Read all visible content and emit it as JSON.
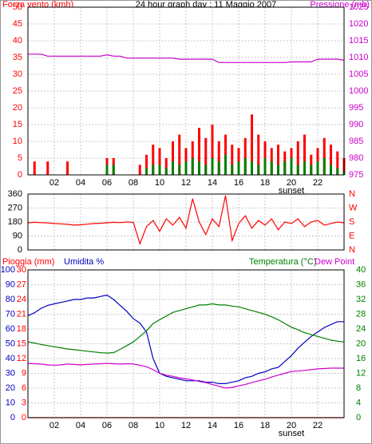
{
  "chart_data": [
    {
      "type": "bar",
      "title": "24 hour graph day : 11 Maggio 2007",
      "x": [
        0,
        0.5,
        1,
        1.5,
        2,
        2.5,
        3,
        3.5,
        4,
        4.5,
        5,
        5.5,
        6,
        6.5,
        7,
        7.5,
        8,
        8.5,
        9,
        9.5,
        10,
        10.5,
        11,
        11.5,
        12,
        12.5,
        13,
        13.5,
        14,
        14.5,
        15,
        15.5,
        16,
        16.5,
        17,
        17.5,
        18,
        18.5,
        19,
        19.5,
        20,
        20.5,
        21,
        21.5,
        22,
        22.5,
        23,
        23.5,
        24
      ],
      "xlim": [
        0,
        24
      ],
      "xticks": [
        {
          "value": 2,
          "label": "02"
        },
        {
          "value": 4,
          "label": "04"
        },
        {
          "value": 6,
          "label": "06"
        },
        {
          "value": 8,
          "label": "08"
        },
        10,
        12,
        14,
        16,
        18,
        20,
        22
      ],
      "show_xtick_labels": true,
      "ylim": [
        0,
        50
      ],
      "yticks": [
        0,
        5,
        10,
        15,
        20,
        25,
        30,
        35,
        40,
        45,
        50
      ],
      "ycolor": "#ff0000",
      "y2lim": [
        975,
        1025
      ],
      "y2ticks": [
        975,
        980,
        985,
        990,
        995,
        1000,
        1005,
        1010,
        1015,
        1020,
        1025
      ],
      "y2color": "#cc00cc",
      "grid": true,
      "annotations": [
        {
          "x": 20,
          "text": "sunset"
        }
      ],
      "series": [
        {
          "name": "Forza vento (kmh)",
          "type": "bar",
          "color": "#ff0000",
          "values": [
            0,
            4,
            0,
            4,
            0,
            0,
            4,
            0,
            0,
            0,
            0,
            0,
            5,
            5,
            0,
            0,
            0,
            3,
            6,
            9,
            8,
            5,
            10,
            12,
            8,
            10,
            14,
            11,
            15,
            10,
            12,
            9,
            8,
            11,
            18,
            12,
            10,
            8,
            9,
            7,
            8,
            10,
            12,
            6,
            8,
            11,
            9,
            7,
            5
          ]
        },
        {
          "type": "bar",
          "color": "#008000",
          "values": [
            0,
            0,
            0,
            0,
            0,
            0,
            0,
            0,
            0,
            0,
            0,
            0,
            3,
            3,
            0,
            0,
            0,
            0,
            2,
            3,
            3,
            2,
            4,
            3,
            4,
            5,
            4,
            3,
            5,
            4,
            6,
            3,
            4,
            5,
            4,
            3,
            5,
            4,
            3,
            4,
            5,
            3,
            4,
            3,
            4,
            5,
            3,
            2,
            1
          ]
        },
        {
          "name": "Pressione (mb)",
          "type": "line",
          "axis": "y2",
          "color": "#cc00cc",
          "values": [
            1011,
            1011,
            1011,
            1010.4,
            1010.4,
            1010.4,
            1010.4,
            1010.4,
            1010.4,
            1010.4,
            1010.4,
            1010.4,
            1010.8,
            1010.4,
            1010.4,
            1009.8,
            1009.8,
            1009.8,
            1009.8,
            1009.8,
            1009.8,
            1009.8,
            1009.8,
            1009.5,
            1009.5,
            1009.5,
            1009.5,
            1009.5,
            1009.5,
            1008.5,
            1008.5,
            1008.5,
            1008.5,
            1008.5,
            1008.5,
            1008.5,
            1008.5,
            1008.5,
            1008.5,
            1008.5,
            1008.7,
            1008.7,
            1008.7,
            1008.7,
            1009.5,
            1009.5,
            1009.5,
            1009.5,
            1009.2
          ]
        }
      ]
    },
    {
      "type": "line",
      "x": [
        0,
        0.5,
        1,
        1.5,
        2,
        2.5,
        3,
        3.5,
        4,
        4.5,
        5,
        5.5,
        6,
        6.5,
        7,
        7.5,
        8,
        8.5,
        9,
        9.5,
        10,
        10.5,
        11,
        11.5,
        12,
        12.5,
        13,
        13.5,
        14,
        14.5,
        15,
        15.5,
        16,
        16.5,
        17,
        17.5,
        18,
        18.5,
        19,
        19.5,
        20,
        20.5,
        21,
        21.5,
        22,
        22.5,
        23,
        23.5,
        24
      ],
      "xlim": [
        0,
        24
      ],
      "xticks": [
        2,
        4,
        6,
        8,
        10,
        12,
        14,
        16,
        18,
        20,
        22
      ],
      "show_xtick_labels": false,
      "ylim": [
        0,
        360
      ],
      "yticks": [
        0,
        90,
        180,
        270,
        360
      ],
      "ycolor": "#000000",
      "y2lim": [
        0,
        360
      ],
      "y2ticks": [
        {
          "value": 0,
          "label": "N"
        },
        {
          "value": 90,
          "label": "E"
        },
        {
          "value": 180,
          "label": "S"
        },
        {
          "value": 270,
          "label": "W"
        },
        {
          "value": 360,
          "label": "N"
        }
      ],
      "y2color": "#ff0000",
      "grid": true,
      "series": [
        {
          "type": "line",
          "color": "#ff0000",
          "values": [
            175,
            178,
            176,
            174,
            170,
            168,
            165,
            160,
            162,
            166,
            170,
            172,
            175,
            178,
            176,
            180,
            178,
            40,
            150,
            190,
            120,
            200,
            160,
            210,
            140,
            330,
            180,
            100,
            200,
            150,
            350,
            60,
            170,
            220,
            140,
            190,
            160,
            200,
            130,
            180,
            170,
            200,
            150,
            180,
            190,
            160,
            170,
            180,
            175
          ]
        }
      ]
    },
    {
      "type": "line",
      "x": [
        0,
        0.5,
        1,
        1.5,
        2,
        2.5,
        3,
        3.5,
        4,
        4.5,
        5,
        5.5,
        6,
        6.5,
        7,
        7.5,
        8,
        8.5,
        9,
        9.5,
        10,
        10.5,
        11,
        11.5,
        12,
        12.5,
        13,
        13.5,
        14,
        14.5,
        15,
        15.5,
        16,
        16.5,
        17,
        17.5,
        18,
        18.5,
        19,
        19.5,
        20,
        20.5,
        21,
        21.5,
        22,
        22.5,
        23,
        23.5,
        24
      ],
      "xlim": [
        0,
        24
      ],
      "xticks": [
        {
          "value": 2,
          "label": "02"
        },
        {
          "value": 4,
          "label": "04"
        },
        {
          "value": 6,
          "label": "06"
        },
        {
          "value": 8,
          "label": "08"
        },
        10,
        12,
        14,
        16,
        18,
        20,
        22
      ],
      "show_xtick_labels": true,
      "ylim": [
        0,
        100
      ],
      "yticks": [
        0,
        10,
        20,
        30,
        40,
        50,
        60,
        70,
        80,
        90,
        100
      ],
      "ycolor": "#0000c0",
      "y3lim": [
        0,
        30
      ],
      "y3ticks": [
        0,
        3,
        6,
        9,
        12,
        15,
        18,
        21,
        24,
        27,
        30
      ],
      "y3color": "#ff0000",
      "y2lim": [
        0,
        40
      ],
      "y2ticks": [
        0,
        4,
        8,
        12,
        16,
        20,
        24,
        28,
        32,
        36,
        40
      ],
      "y2color": "#008000",
      "grid": true,
      "annotations": [
        {
          "x": 20,
          "text": "sunset"
        }
      ],
      "series": [
        {
          "name": "Pioggia (mm)",
          "type": "line",
          "axis": "y3",
          "color": "#ff0000",
          "values": [
            0,
            0,
            0,
            0,
            0,
            0,
            0,
            0,
            0,
            0,
            0,
            0,
            0,
            0,
            0,
            0,
            0,
            0,
            0,
            0,
            0,
            0,
            0,
            0,
            0,
            0,
            0,
            0,
            0,
            0,
            0,
            0,
            0,
            0,
            0,
            0,
            0,
            0,
            0,
            0,
            0,
            0,
            0,
            0,
            0,
            0,
            0,
            0,
            0
          ]
        },
        {
          "name": "Umidita %",
          "type": "line",
          "color": "#0000c0",
          "values": [
            69,
            71,
            74,
            76,
            77,
            78,
            79,
            80,
            80,
            81,
            81,
            82,
            83,
            80,
            76,
            72,
            67,
            64,
            58,
            40,
            30,
            28,
            27,
            26,
            25,
            25,
            25,
            24,
            24,
            23,
            23,
            24,
            25,
            27,
            28,
            30,
            31,
            33,
            34,
            38,
            42,
            47,
            51,
            55,
            58,
            61,
            63,
            65,
            65
          ]
        },
        {
          "name": "Temperatura (°C)",
          "type": "line",
          "axis": "y2",
          "color": "#008000",
          "values": [
            20.5,
            20.2,
            19.8,
            19.5,
            19.2,
            18.9,
            18.6,
            18.4,
            18.2,
            18,
            17.8,
            17.6,
            17.5,
            17.6,
            18.5,
            19.5,
            20.5,
            22,
            23.5,
            25.5,
            26.5,
            27.5,
            28.5,
            29,
            29.5,
            30,
            30.5,
            30.5,
            30.8,
            30.5,
            30.5,
            30.2,
            30,
            29.5,
            29,
            28.5,
            28,
            27.3,
            26.5,
            25.5,
            24.5,
            23.8,
            23,
            22.5,
            22,
            21.5,
            21,
            20.7,
            20.5
          ]
        },
        {
          "name": "Dew Point",
          "type": "line",
          "axis": "y2",
          "color": "#cc00cc",
          "values": [
            14.7,
            14.6,
            14.5,
            14.3,
            14.2,
            14.3,
            14.5,
            14.4,
            14.3,
            14.4,
            14.5,
            14.6,
            14.7,
            14.6,
            14.5,
            14.6,
            14.5,
            14.2,
            13.8,
            13,
            12,
            11.5,
            11.2,
            10.8,
            10.5,
            10.2,
            9.8,
            9.5,
            9,
            8.5,
            8,
            8.2,
            8.6,
            9,
            9.5,
            10,
            10.4,
            11,
            11.5,
            12,
            12.5,
            12.6,
            12.8,
            13,
            13.2,
            13.3,
            13.4,
            13.4,
            13.4
          ]
        }
      ]
    }
  ]
}
